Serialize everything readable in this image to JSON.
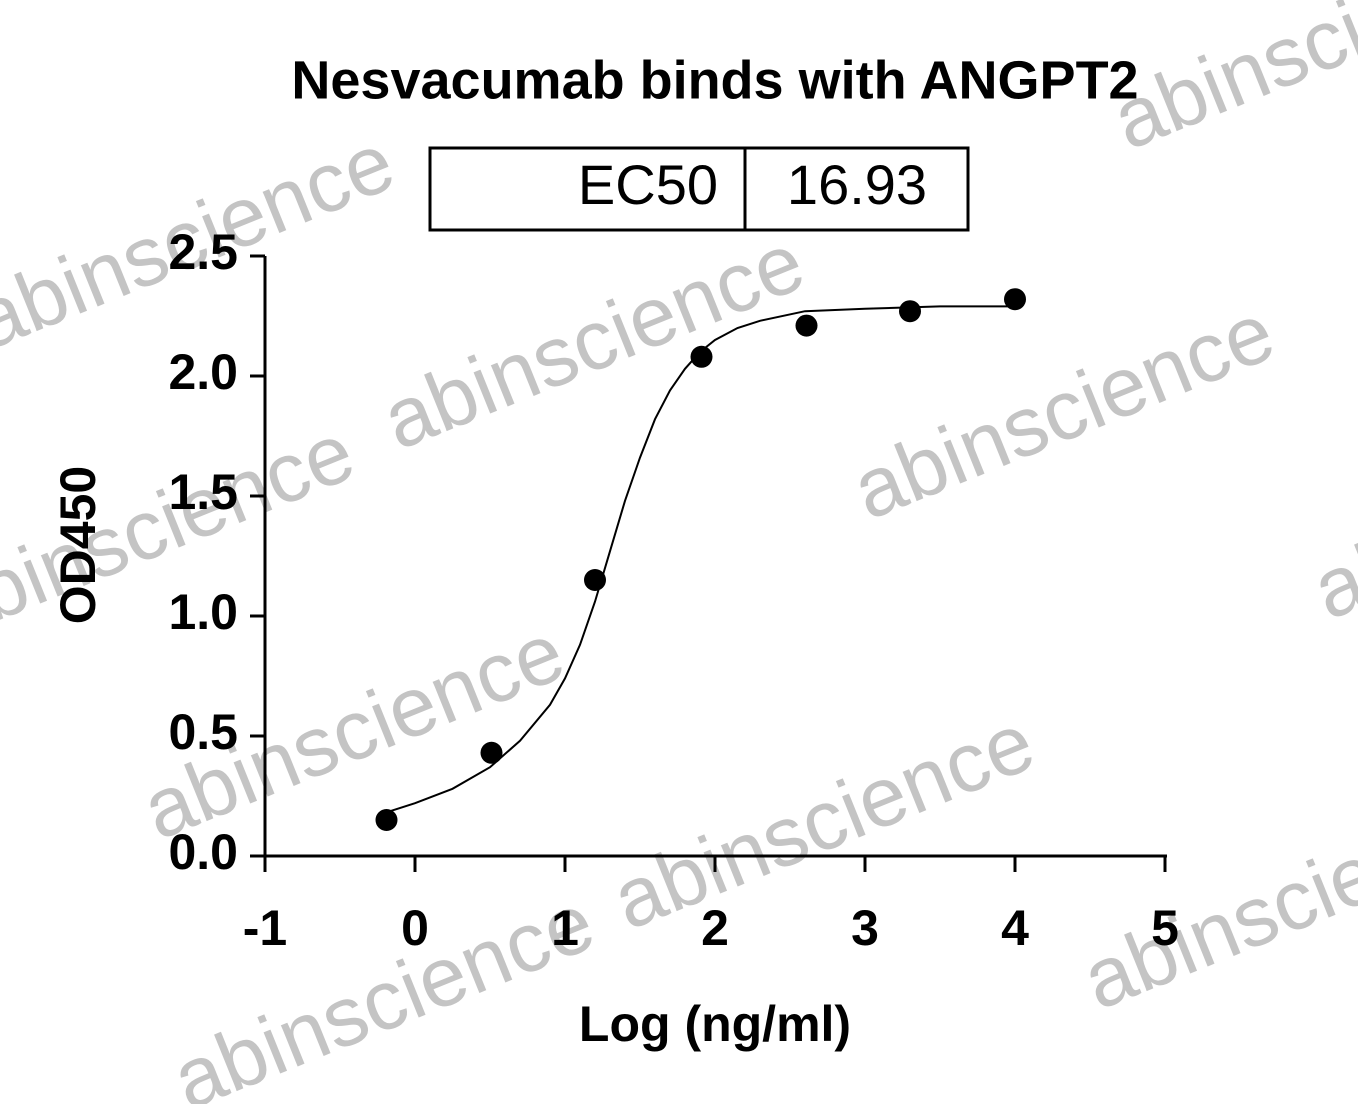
{
  "chart_data": {
    "type": "scatter",
    "title": "Nesvacumab binds with ANGPT2",
    "x_label": "Log (ng/ml)",
    "y_label": "OD450",
    "table": {
      "label": "EC50",
      "value": 16.93
    },
    "watermark": "abinscience",
    "x": [
      -0.19,
      0.51,
      1.2,
      1.91,
      2.61,
      3.3,
      4.0
    ],
    "values": [
      0.15,
      0.43,
      1.15,
      2.08,
      2.21,
      2.27,
      2.32
    ],
    "color": "#000000",
    "curve": {
      "x": [
        -0.2,
        0,
        0.25,
        0.5,
        0.7,
        0.9,
        1.0,
        1.1,
        1.2,
        1.3,
        1.4,
        1.5,
        1.6,
        1.7,
        1.8,
        1.9,
        2.0,
        2.15,
        2.3,
        2.6,
        3.0,
        3.5,
        4.0
      ],
      "y": [
        0.18,
        0.22,
        0.28,
        0.37,
        0.48,
        0.63,
        0.74,
        0.88,
        1.06,
        1.27,
        1.48,
        1.66,
        1.82,
        1.94,
        2.03,
        2.1,
        2.15,
        2.2,
        2.23,
        2.27,
        2.28,
        2.29,
        2.29
      ]
    },
    "xlim": [
      -1,
      5
    ],
    "xticks": [
      -1,
      0,
      1,
      2,
      3,
      4,
      5
    ],
    "ylim": [
      0,
      2.5
    ],
    "yticks": [
      {
        "value": 0,
        "label": "0.0"
      },
      0.5,
      {
        "value": 1,
        "label": "1.0"
      },
      1.5,
      {
        "value": 2,
        "label": "2.0"
      },
      2.5
    ]
  }
}
